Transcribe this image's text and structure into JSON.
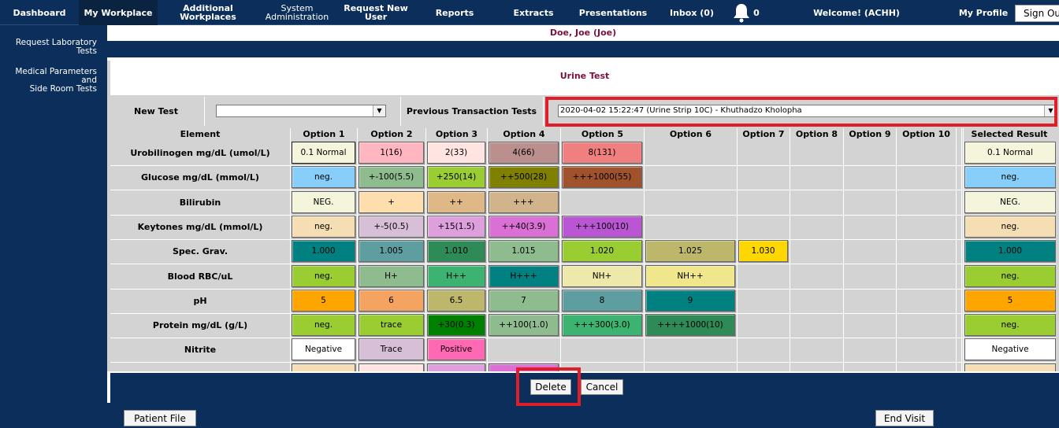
{
  "nav": {
    "dashboard": "Dashboard",
    "my_workplace": "My Workplace",
    "additional_workplaces": "Additional Workplaces",
    "system_admin_line1": "System",
    "system_admin_line2": "Administration",
    "request_new_user": "Request New User",
    "reports": "Reports",
    "extracts": "Extracts",
    "presentations": "Presentations",
    "inbox": "Inbox (0)",
    "notifications_count": "0",
    "welcome": "Welcome! (ACHH)",
    "my_profile": "My Profile",
    "sign_out": "Sign Ou"
  },
  "sidebar": {
    "request_lab_tests": "Request Laboratory Tests",
    "medical_params_line1": "Medical Parameters and",
    "medical_params_line2": "Side Room Tests"
  },
  "patient": {
    "name": "Doe, Joe (Joe)"
  },
  "form": {
    "title": "Urine Test",
    "new_test_label": "New Test",
    "new_test_value": "",
    "prev_label": "Previous Transaction Tests",
    "prev_value": "2020-04-02 15:22:47 (Urine Strip 10C) - Khuthadzo Kholopha"
  },
  "grid": {
    "headers": {
      "element": "Element",
      "opt1": "Option 1",
      "opt2": "Option 2",
      "opt3": "Option 3",
      "opt4": "Option 4",
      "opt5": "Option 5",
      "opt6": "Option 6",
      "opt7": "Option 7",
      "opt8": "Option 8",
      "opt9": "Option 9",
      "opt10": "Option 10",
      "selected": "Selected Result"
    },
    "rows": [
      {
        "label": "Urobilinogen mg/dL (umol/L)",
        "options": [
          {
            "text": "0.1 Normal",
            "color": "#f5f5dc",
            "selected": true
          },
          {
            "text": "1(16)",
            "color": "#ffb6c1"
          },
          {
            "text": "2(33)",
            "color": "#ffe4e1"
          },
          {
            "text": "4(66)",
            "color": "#bc8f8f"
          },
          {
            "text": "8(131)",
            "color": "#f08080"
          }
        ],
        "result": {
          "text": "0.1 Normal",
          "color": "#f5f5dc"
        }
      },
      {
        "label": "Glucose mg/dL (mmol/L)",
        "options": [
          {
            "text": "neg.",
            "color": "#87cefa"
          },
          {
            "text": "+-100(5.5)",
            "color": "#8fbc8f"
          },
          {
            "text": "+250(14)",
            "color": "#9acd32"
          },
          {
            "text": "++500(28)",
            "color": "#808000"
          },
          {
            "text": "+++1000(55)",
            "color": "#a0522d"
          }
        ],
        "result": {
          "text": "neg.",
          "color": "#87cefa"
        }
      },
      {
        "label": "Bilirubin",
        "options": [
          {
            "text": "NEG.",
            "color": "#f5f5dc"
          },
          {
            "text": "+",
            "color": "#ffdead"
          },
          {
            "text": "++",
            "color": "#deb887"
          },
          {
            "text": "+++",
            "color": "#d2b48c"
          }
        ],
        "result": {
          "text": "NEG.",
          "color": "#f5f5dc"
        }
      },
      {
        "label": "Keytones mg/dL (mmol/L)",
        "options": [
          {
            "text": "neg.",
            "color": "#f5deb3"
          },
          {
            "text": "+-5(0.5)",
            "color": "#d8bfd8"
          },
          {
            "text": "+15(1.5)",
            "color": "#dda0dd"
          },
          {
            "text": "++40(3.9)",
            "color": "#da70d6"
          },
          {
            "text": "+++100(10)",
            "color": "#ba55d3"
          }
        ],
        "result": {
          "text": "neg.",
          "color": "#f5deb3"
        }
      },
      {
        "label": "Spec. Grav.",
        "options": [
          {
            "text": "1.000",
            "color": "#008080"
          },
          {
            "text": "1.005",
            "color": "#5f9ea0"
          },
          {
            "text": "1.010",
            "color": "#2e8b57"
          },
          {
            "text": "1.015",
            "color": "#8fbc8f"
          },
          {
            "text": "1.020",
            "color": "#9acd32"
          },
          {
            "text": "1.025",
            "color": "#bdb76b"
          },
          {
            "text": "1.030",
            "color": "#ffd700"
          }
        ],
        "result": {
          "text": "1.000",
          "color": "#008080"
        }
      },
      {
        "label": "Blood RBC/uL",
        "options": [
          {
            "text": "neg.",
            "color": "#9acd32"
          },
          {
            "text": "H+",
            "color": "#8fbc8f"
          },
          {
            "text": "H++",
            "color": "#3cb371"
          },
          {
            "text": "H+++",
            "color": "#008080"
          },
          {
            "text": "NH+",
            "color": "#eee8aa"
          },
          {
            "text": "NH++",
            "color": "#f0e68c"
          }
        ],
        "result": {
          "text": "neg.",
          "color": "#9acd32"
        }
      },
      {
        "label": "pH",
        "options": [
          {
            "text": "5",
            "color": "#ffa500"
          },
          {
            "text": "6",
            "color": "#f4a460"
          },
          {
            "text": "6.5",
            "color": "#bdb76b"
          },
          {
            "text": "7",
            "color": "#8fbc8f"
          },
          {
            "text": "8",
            "color": "#5f9ea0"
          },
          {
            "text": "9",
            "color": "#008080"
          }
        ],
        "result": {
          "text": "5",
          "color": "#ffa500"
        }
      },
      {
        "label": "Protein mg/dL (g/L)",
        "options": [
          {
            "text": "neg.",
            "color": "#9acd32"
          },
          {
            "text": "trace",
            "color": "#9acd32"
          },
          {
            "text": "+30(0.3)",
            "color": "#008000"
          },
          {
            "text": "++100(1.0)",
            "color": "#8fbc8f"
          },
          {
            "text": "+++300(3.0)",
            "color": "#3cb371"
          },
          {
            "text": "++++1000(10)",
            "color": "#2e8b57"
          }
        ],
        "result": {
          "text": "neg.",
          "color": "#9acd32"
        }
      },
      {
        "label": "Nitrite",
        "options": [
          {
            "text": "Negative",
            "color": "#ffffff"
          },
          {
            "text": "Trace",
            "color": "#d8bfd8"
          },
          {
            "text": "Positive",
            "color": "#ff69b4"
          }
        ],
        "result": {
          "text": "Negative",
          "color": "#ffffff"
        }
      },
      {
        "label": "",
        "options": [
          {
            "text": "",
            "color": "#f5deb3"
          },
          {
            "text": "",
            "color": "#ffe4e1"
          },
          {
            "text": "",
            "color": "#dda0dd"
          },
          {
            "text": "",
            "color": "#da70d6"
          }
        ],
        "result": {
          "text": "",
          "color": "#f5deb3"
        }
      }
    ]
  },
  "buttons": {
    "delete": "Delete",
    "cancel": "Cancel",
    "patient_file": "Patient File",
    "end_visit": "End Visit"
  },
  "colors": {
    "nav_bg": "#0b2f5a",
    "panel_bg": "#d3d3d3",
    "accent_text": "#7b1040",
    "highlight": "#e01e2a"
  }
}
